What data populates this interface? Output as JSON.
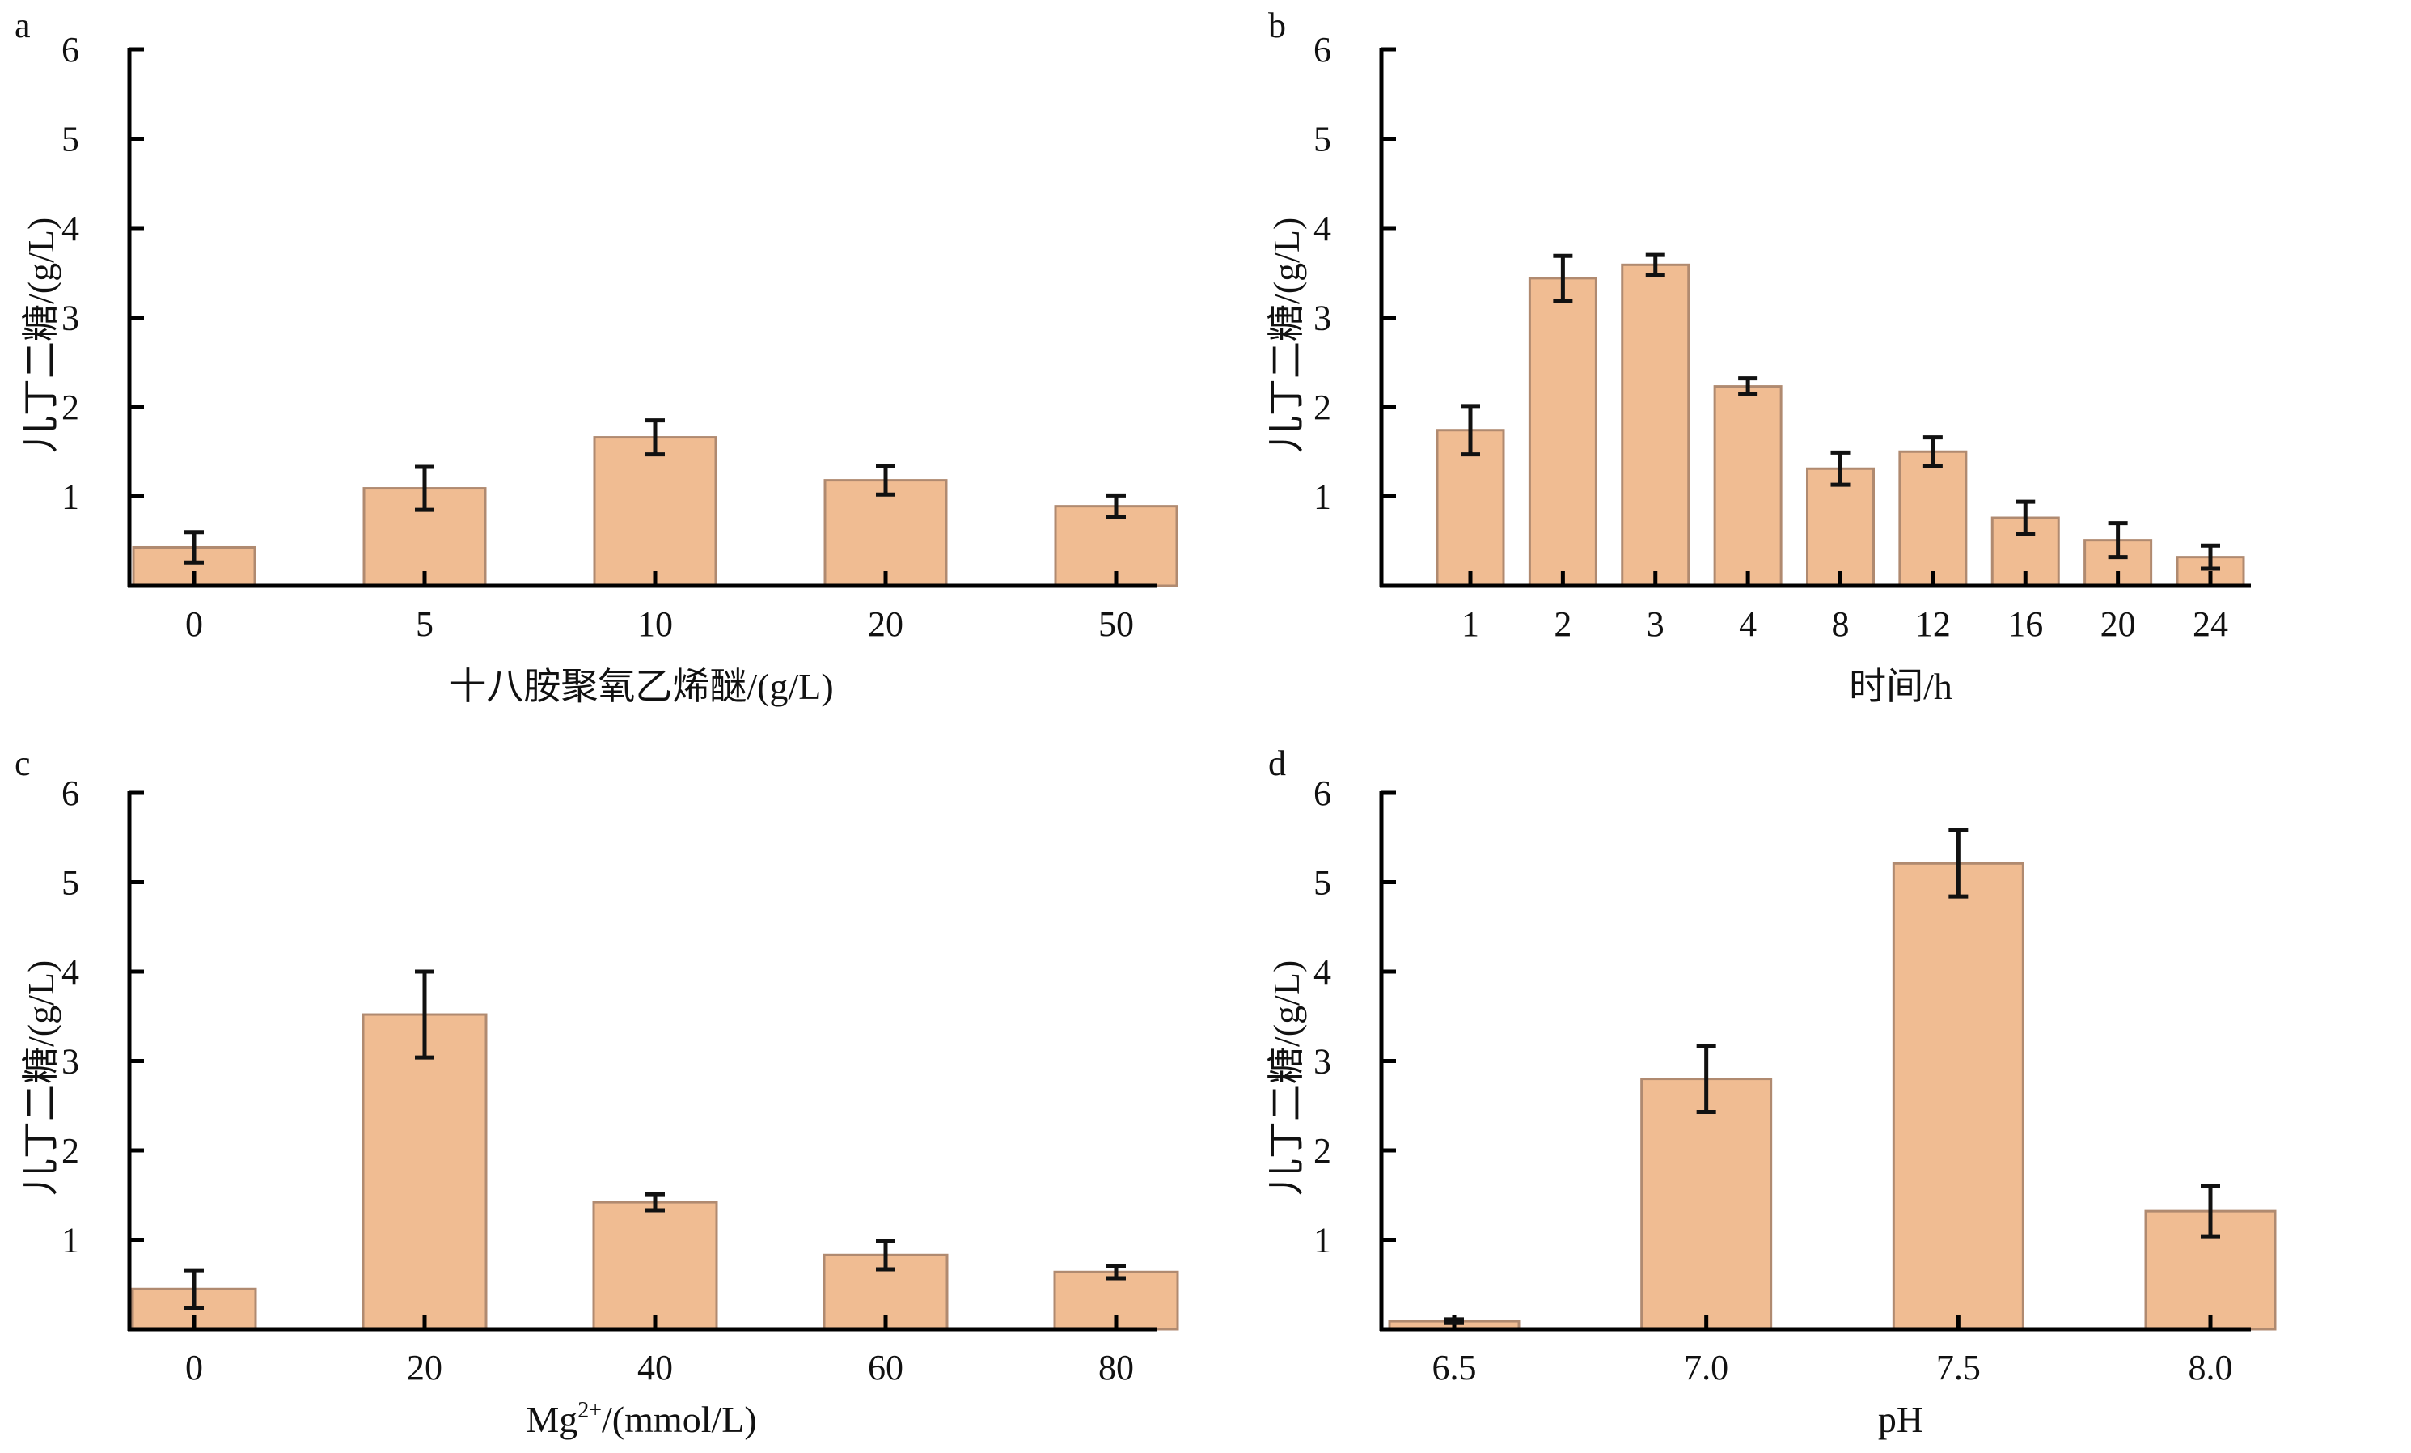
{
  "figure": {
    "bar_fill": "#F0BC92",
    "bar_edge": "#B08A70",
    "axis_color": "#000000",
    "errorbar_color": "#111111"
  },
  "chart_data": [
    {
      "id": "a",
      "panel_label": "a",
      "type": "bar",
      "title": "",
      "xlabel": "十八胺聚氧乙烯醚/(g/L)",
      "ylabel": "儿丁二糖/(g/L)",
      "categories": [
        "0",
        "5",
        "10",
        "20",
        "50"
      ],
      "values": [
        0.43,
        1.09,
        1.66,
        1.18,
        0.89
      ],
      "errors": [
        0.17,
        0.24,
        0.19,
        0.16,
        0.12
      ],
      "ylim": [
        0,
        6
      ],
      "yticks": [
        "1",
        "2",
        "3",
        "4",
        "5",
        "6"
      ],
      "grid": false
    },
    {
      "id": "b",
      "panel_label": "b",
      "type": "bar",
      "title": "",
      "xlabel": "时间/h",
      "ylabel": "儿丁二糖/(g/L)",
      "categories": [
        "1",
        "2",
        "3",
        "4",
        "8",
        "12",
        "16",
        "20",
        "24"
      ],
      "values": [
        1.74,
        3.44,
        3.59,
        2.23,
        1.31,
        1.5,
        0.76,
        0.51,
        0.32
      ],
      "errors": [
        0.27,
        0.25,
        0.11,
        0.09,
        0.18,
        0.16,
        0.18,
        0.19,
        0.13
      ],
      "ylim": [
        0,
        6
      ],
      "yticks": [
        "1",
        "2",
        "3",
        "4",
        "5",
        "6"
      ],
      "grid": false
    },
    {
      "id": "c",
      "panel_label": "c",
      "type": "bar",
      "title": "",
      "xlabel_main": "Mg",
      "xlabel_sup": "2+",
      "xlabel_rest": "/(mmol/L)",
      "xlabel": "Mg2+/(mmol/L)",
      "ylabel": "儿丁二糖/(g/L)",
      "categories": [
        "0",
        "20",
        "40",
        "60",
        "80"
      ],
      "values": [
        0.45,
        3.52,
        1.42,
        0.83,
        0.64
      ],
      "errors": [
        0.21,
        0.48,
        0.09,
        0.16,
        0.07
      ],
      "ylim": [
        0,
        6
      ],
      "yticks": [
        "1",
        "2",
        "3",
        "4",
        "5",
        "6"
      ],
      "grid": false
    },
    {
      "id": "d",
      "panel_label": "d",
      "type": "bar",
      "title": "",
      "xlabel": "pH",
      "ylabel": "儿丁二糖/(g/L)",
      "categories": [
        "6.5",
        "7.0",
        "7.5",
        "8.0"
      ],
      "values": [
        0.09,
        2.8,
        5.21,
        1.32
      ],
      "errors": [
        0.02,
        0.37,
        0.37,
        0.28
      ],
      "ylim": [
        0,
        6
      ],
      "yticks": [
        "1",
        "2",
        "3",
        "4",
        "5",
        "6"
      ],
      "grid": false
    }
  ]
}
